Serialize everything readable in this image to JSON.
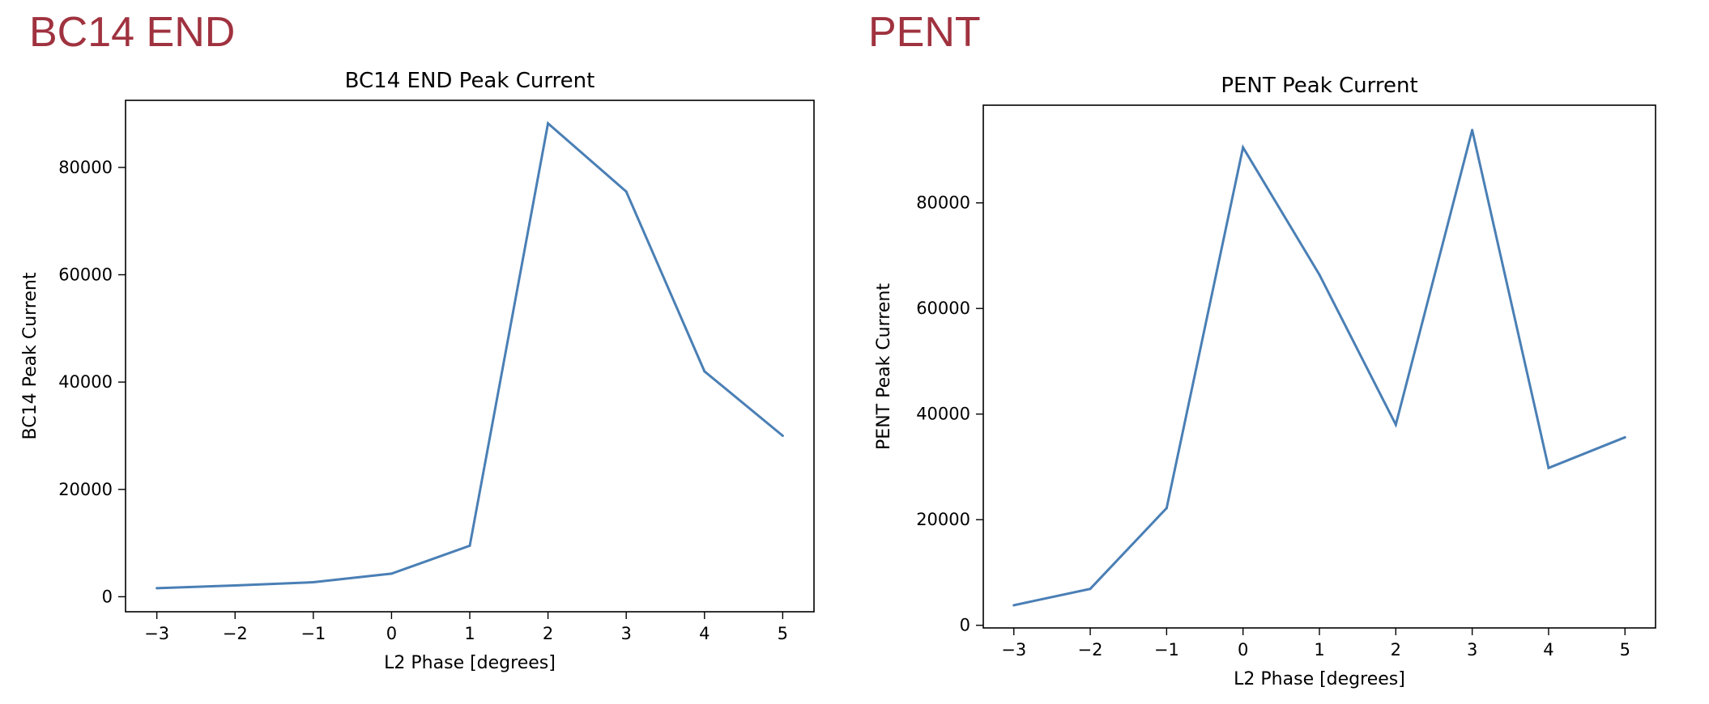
{
  "slide": {
    "left_heading": "BC14 END",
    "right_heading": "PENT",
    "heading_color": "#a0323f"
  },
  "chart_data": [
    {
      "type": "line",
      "title": "BC14 END Peak Current",
      "xlabel": "L2 Phase [degrees]",
      "ylabel": "BC14 Peak Current",
      "x": [
        -3,
        -2,
        -1,
        0,
        1,
        2,
        3,
        4,
        5
      ],
      "series": [
        {
          "values": [
            1600,
            2100,
            2700,
            4300,
            9500,
            88200,
            75500,
            42000,
            30000
          ],
          "color": "#4a7fb5"
        }
      ],
      "xlim": [
        -3.4,
        5.4
      ],
      "ylim": [
        -2800,
        92500
      ],
      "xticks": [
        -3,
        -2,
        -1,
        0,
        1,
        2,
        3,
        4,
        5
      ],
      "xtick_labels": [
        "−3",
        "−2",
        "−1",
        "0",
        "1",
        "2",
        "3",
        "4",
        "5"
      ],
      "yticks": [
        0,
        20000,
        40000,
        60000,
        80000
      ],
      "ytick_labels": [
        "0",
        "20000",
        "40000",
        "60000",
        "80000"
      ],
      "grid": false,
      "legend": "none"
    },
    {
      "type": "line",
      "title": "PENT Peak Current",
      "xlabel": "L2 Phase [degrees]",
      "ylabel": "PENT Peak Current",
      "x": [
        -3,
        -2,
        -1,
        0,
        1,
        2,
        3,
        4,
        5
      ],
      "series": [
        {
          "values": [
            3800,
            6900,
            22200,
            90500,
            66400,
            38000,
            93800,
            29800,
            35600
          ],
          "color": "#4a7fb5"
        }
      ],
      "xlim": [
        -3.4,
        5.4
      ],
      "ylim": [
        -500,
        98500
      ],
      "xticks": [
        -3,
        -2,
        -1,
        0,
        1,
        2,
        3,
        4,
        5
      ],
      "xtick_labels": [
        "−3",
        "−2",
        "−1",
        "0",
        "1",
        "2",
        "3",
        "4",
        "5"
      ],
      "yticks": [
        0,
        20000,
        40000,
        60000,
        80000
      ],
      "ytick_labels": [
        "0",
        "20000",
        "40000",
        "60000",
        "80000"
      ],
      "grid": false,
      "legend": "none"
    }
  ]
}
